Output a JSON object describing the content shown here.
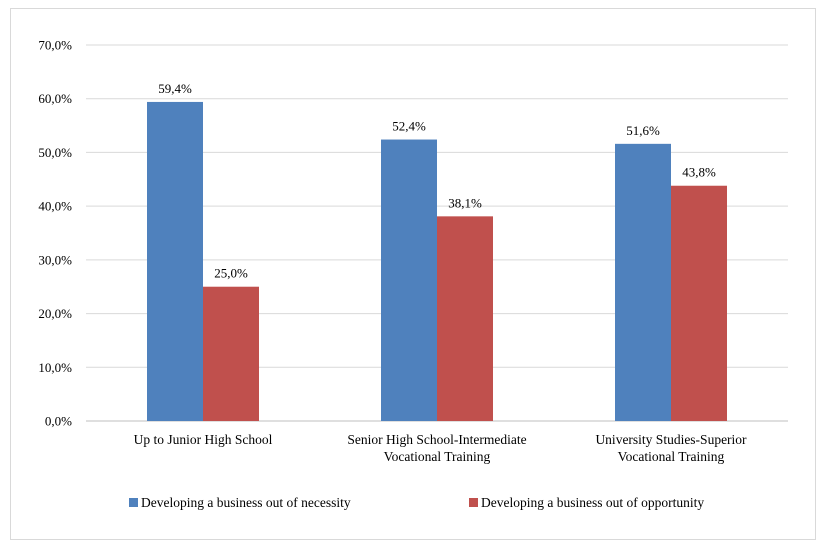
{
  "chart_data": {
    "type": "bar",
    "title": "",
    "xlabel": "",
    "ylabel": "",
    "categories": [
      [
        "Up to Junior High School"
      ],
      [
        "Senior High School-Intermediate",
        "Vocational Training"
      ],
      [
        "University Studies-Superior",
        "Vocational Training"
      ]
    ],
    "series": [
      {
        "name": "Developing a business out of necessity",
        "color": "#4f81bd",
        "values": [
          59.4,
          52.4,
          51.6
        ],
        "labels": [
          "59,4%",
          "52,4%",
          "51,6%"
        ]
      },
      {
        "name": "Developing a business out of opportunity",
        "color": "#c0504d",
        "values": [
          25.0,
          38.1,
          43.8
        ],
        "labels": [
          "25,0%",
          "38,1%",
          "43,8%"
        ]
      }
    ],
    "ylim": [
      0,
      70
    ],
    "yticks": [
      0,
      10,
      20,
      30,
      40,
      50,
      60,
      70
    ],
    "ytick_labels": [
      "0,0%",
      "10,0%",
      "20,0%",
      "30,0%",
      "40,0%",
      "50,0%",
      "60,0%",
      "70,0%"
    ],
    "grid": true,
    "legend_position": "bottom"
  }
}
